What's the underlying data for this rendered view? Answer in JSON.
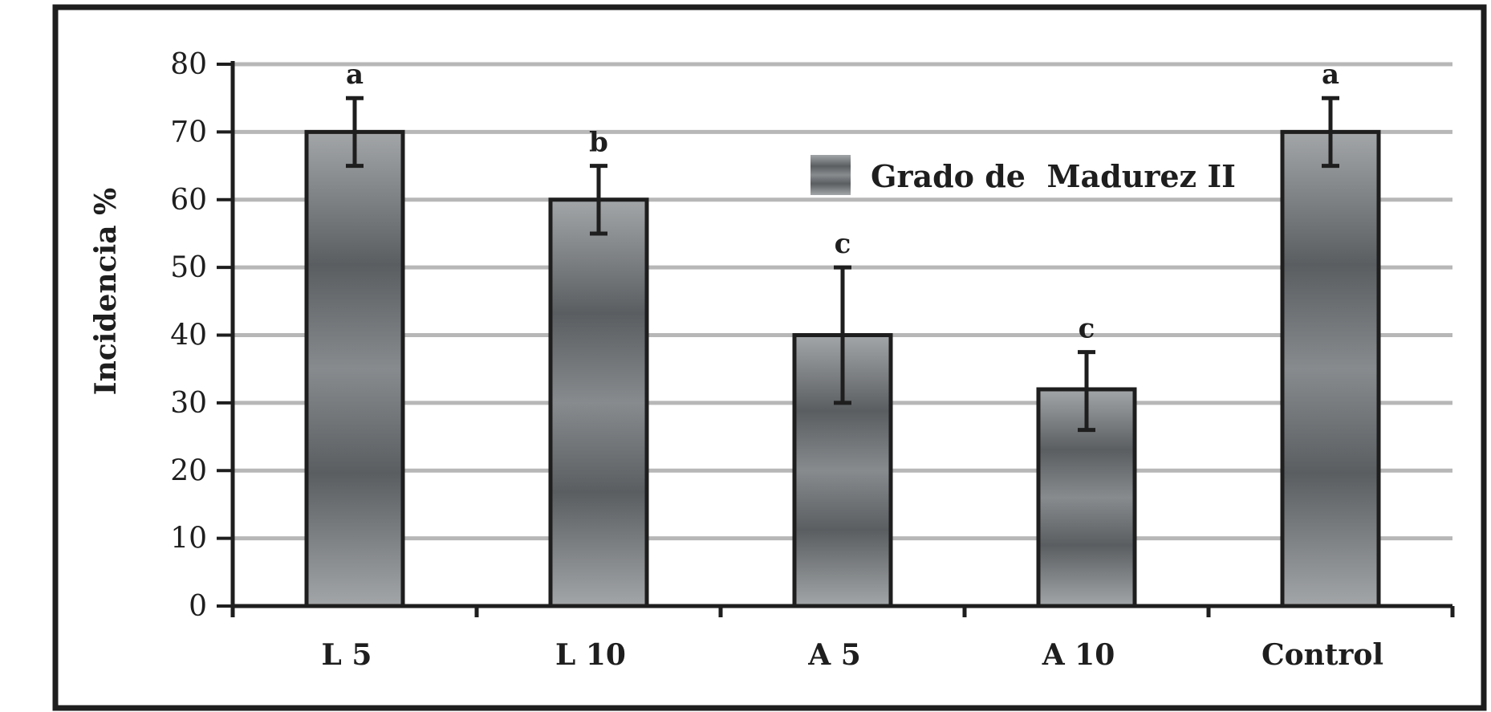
{
  "chart_data": {
    "type": "bar",
    "title": "",
    "xlabel": "",
    "ylabel": "Incidencia %",
    "ylim": [
      0,
      80
    ],
    "yticks": [
      0,
      10,
      20,
      30,
      40,
      50,
      60,
      70,
      80
    ],
    "grid": true,
    "legend": {
      "placement": "top-center",
      "entries": [
        "Grado de  Madurez II"
      ]
    },
    "categories": [
      "L 5",
      "L 10",
      "A 5",
      "A 10",
      "Control"
    ],
    "series": [
      {
        "name": "Grado de  Madurez II",
        "values": [
          70,
          60,
          40,
          32,
          70
        ],
        "error_low": [
          65,
          55,
          30,
          26,
          65
        ],
        "error_high": [
          75,
          65,
          50,
          37.5,
          75
        ],
        "labels": [
          "a",
          "b",
          "c",
          "c",
          "a"
        ]
      }
    ],
    "colors": {
      "bar_dark": "#5a5e61",
      "bar_mid": "#7d8184",
      "bar_light": "#a3a6a8",
      "grid": "#b7b7b7",
      "axis": "#1e1e1e",
      "frame": "#1e1e1e"
    }
  }
}
